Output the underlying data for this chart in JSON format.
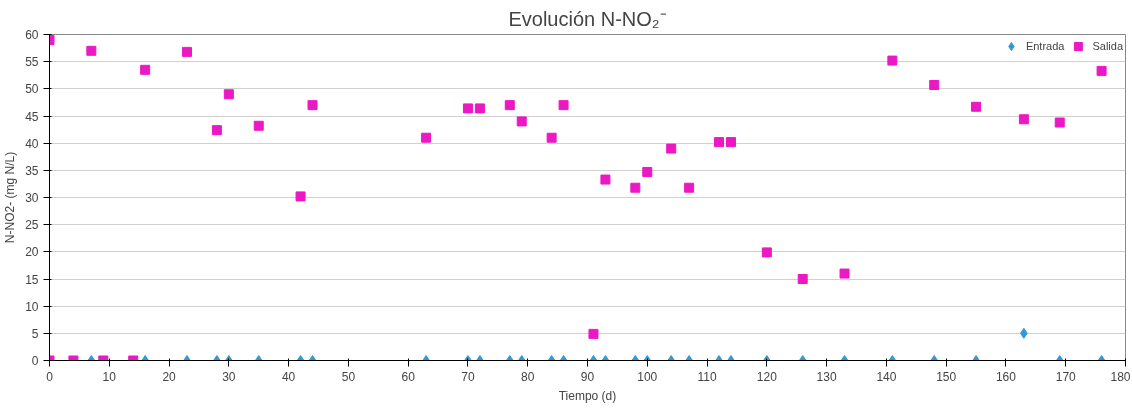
{
  "chart_data": {
    "type": "scatter",
    "title": "Evolución N-NO₂⁻",
    "xlabel": "Tiempo (d)",
    "ylabel": "N-NO2- (mg N/L)",
    "xlim": [
      0,
      180
    ],
    "xticks": [
      0,
      10,
      20,
      30,
      40,
      50,
      60,
      70,
      80,
      90,
      100,
      110,
      120,
      130,
      140,
      150,
      160,
      170,
      180
    ],
    "ylim": [
      0,
      60
    ],
    "yticks": [
      0,
      5,
      10,
      15,
      20,
      25,
      30,
      35,
      40,
      45,
      50,
      55,
      60
    ],
    "grid": "y",
    "legend": "top right",
    "series": [
      {
        "name": "Entrada",
        "color": "#2e9ad8",
        "marker": "diamond",
        "x": [
          7,
          16,
          23,
          28,
          30,
          35,
          42,
          44,
          63,
          70,
          72,
          77,
          79,
          84,
          86,
          91,
          93,
          98,
          100,
          104,
          107,
          112,
          114,
          120,
          126,
          133,
          141,
          148,
          155,
          163,
          169,
          176
        ],
        "values": [
          0,
          0,
          0,
          0,
          0,
          0,
          0,
          0,
          0,
          0,
          0,
          0,
          0,
          0,
          0,
          0,
          0,
          0,
          0,
          0,
          0,
          0,
          0,
          0,
          0,
          0,
          0,
          0,
          0,
          5,
          0,
          0
        ]
      },
      {
        "name": "Salida",
        "color": "#ec18c4",
        "marker": "square",
        "x": [
          0,
          0,
          4,
          7,
          9,
          14,
          16,
          23,
          28,
          30,
          35,
          42,
          44,
          63,
          70,
          72,
          77,
          79,
          84,
          86,
          91,
          93,
          98,
          100,
          104,
          107,
          112,
          114,
          120,
          126,
          133,
          141,
          148,
          155,
          163,
          169,
          176
        ],
        "values": [
          59,
          0,
          0,
          57,
          0,
          0,
          53.5,
          56.8,
          42.4,
          49,
          43.2,
          30.2,
          47,
          41,
          46.4,
          46.4,
          47,
          44,
          41,
          47,
          4.9,
          33.3,
          31.8,
          34.7,
          39,
          31.8,
          40.2,
          40.2,
          19.9,
          15,
          16,
          55.2,
          50.7,
          46.7,
          44.4,
          43.8,
          53.3
        ]
      }
    ]
  }
}
